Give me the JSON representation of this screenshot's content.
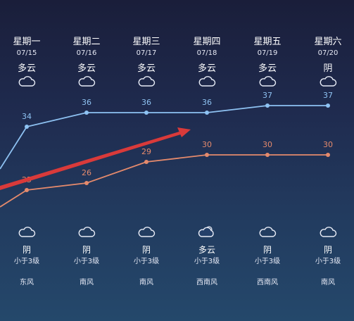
{
  "days": [
    {
      "weekday": "星期一",
      "date": "07/15",
      "day_weather": "多云",
      "day_icon": "cloud-icon",
      "night_icon": "cloud-icon",
      "night_weather": "阴",
      "wind_level": "小于3级",
      "wind_dir": "东风"
    },
    {
      "weekday": "星期二",
      "date": "07/16",
      "day_weather": "多云",
      "day_icon": "cloud-icon",
      "night_icon": "cloud-icon",
      "night_weather": "阴",
      "wind_level": "小于3级",
      "wind_dir": "南风"
    },
    {
      "weekday": "星期三",
      "date": "07/17",
      "day_weather": "多云",
      "day_icon": "cloud-icon",
      "night_icon": "cloud-icon",
      "night_weather": "阴",
      "wind_level": "小于3级",
      "wind_dir": "南风"
    },
    {
      "weekday": "星期四",
      "date": "07/18",
      "day_weather": "多云",
      "day_icon": "cloud-icon",
      "night_icon": "partly-cloudy-icon",
      "night_weather": "多云",
      "wind_level": "小于3级",
      "wind_dir": "西南风"
    },
    {
      "weekday": "星期五",
      "date": "07/19",
      "day_weather": "多云",
      "day_icon": "cloud-icon",
      "night_icon": "cloud-icon",
      "night_weather": "阴",
      "wind_level": "小于3级",
      "wind_dir": "西南风"
    },
    {
      "weekday": "星期六",
      "date": "07/20",
      "day_weather": "阴",
      "day_icon": "cloud-icon",
      "night_icon": "cloud-icon",
      "night_weather": "阴",
      "wind_level": "小于3级",
      "wind_dir": "南风"
    }
  ],
  "chart_data": {
    "type": "line",
    "categories": [
      "07/15",
      "07/16",
      "07/17",
      "07/18",
      "07/19",
      "07/20"
    ],
    "series": [
      {
        "name": "",
        "values": [
          34,
          36,
          36,
          36,
          37,
          37
        ],
        "color": "#8ec2f2"
      },
      {
        "name": "",
        "values": [
          25,
          26,
          29,
          30,
          30,
          30
        ],
        "color": "#e58a6c"
      }
    ],
    "ylim": [
      20,
      40
    ],
    "grid": false,
    "annotations": [
      {
        "type": "arrow",
        "color": "#d93a3a"
      }
    ]
  },
  "colors": {
    "high": "#8ec2f2",
    "low": "#e58a6c",
    "arrow": "#d93a3a"
  }
}
